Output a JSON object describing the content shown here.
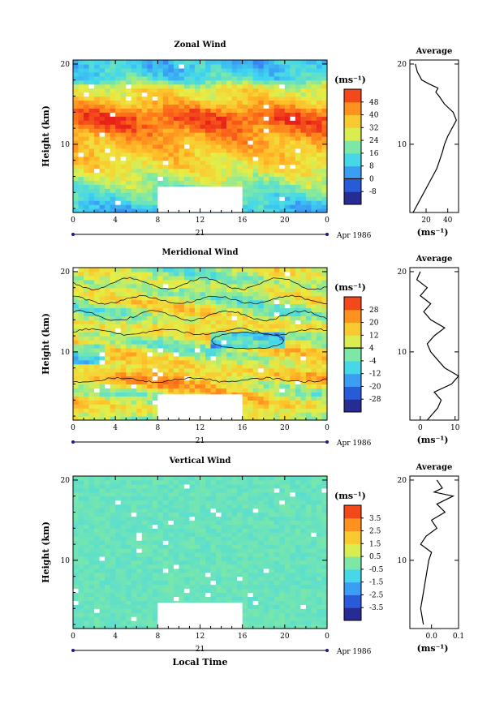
{
  "chart_data": [
    {
      "type": "heatmap",
      "title": "Zonal Wind",
      "ylabel": "Height (km)",
      "xlabel": "",
      "x_ticks": [
        "0",
        "4",
        "8",
        "12",
        "16",
        "20",
        "0"
      ],
      "y_ticks": [
        "10",
        "20"
      ],
      "date_day": "21",
      "date_label": "Apr 1986",
      "ylim": [
        1.5,
        20.5
      ],
      "xlim": [
        0,
        24
      ],
      "data_gap": {
        "x": [
          8,
          16
        ],
        "y": [
          1.5,
          4.7
        ]
      },
      "colorbar": {
        "unit": "(ms⁻¹)",
        "ticks": [
          "48",
          "40",
          "32",
          "24",
          "16",
          "8",
          "0",
          "-8"
        ],
        "range": [
          -12,
          52
        ]
      },
      "profile": {
        "title": "Average",
        "xlabel": "(ms⁻¹)",
        "x_ticks": [
          "20",
          "40"
        ],
        "xlim": [
          5,
          50
        ],
        "y_ticks": [
          "10",
          "20"
        ],
        "heights": [
          1.5,
          3,
          5,
          7,
          9,
          10,
          11,
          12,
          13,
          14,
          15,
          16,
          16.5,
          17,
          17.5,
          18,
          19,
          20
        ],
        "values": [
          8,
          14,
          22,
          30,
          35,
          37,
          40,
          44,
          48,
          45,
          37,
          32,
          29,
          31,
          23,
          16,
          12,
          10
        ]
      }
    },
    {
      "type": "heatmap",
      "title": "Meridional Wind",
      "ylabel": "Height (km)",
      "xlabel": "",
      "x_ticks": [
        "0",
        "4",
        "8",
        "12",
        "16",
        "20",
        "0"
      ],
      "y_ticks": [
        "10",
        "20"
      ],
      "date_day": "21",
      "date_label": "Apr 1986",
      "ylim": [
        1.5,
        20.5
      ],
      "xlim": [
        0,
        24
      ],
      "data_gap": {
        "x": [
          8,
          16
        ],
        "y": [
          1.5,
          4.7
        ]
      },
      "colorbar": {
        "unit": "(ms⁻¹)",
        "ticks": [
          "28",
          "20",
          "12",
          "4",
          "-4",
          "-12",
          "-20",
          "-28"
        ],
        "range": [
          -32,
          32
        ]
      },
      "profile": {
        "title": "Average",
        "xlabel": "(ms⁻¹)",
        "x_ticks": [
          "0",
          "10"
        ],
        "xlim": [
          -3,
          11
        ],
        "y_ticks": [
          "10",
          "20"
        ],
        "heights": [
          1.5,
          3,
          4,
          5,
          6,
          7,
          8,
          9,
          10,
          11,
          12,
          13,
          14,
          15,
          16,
          17,
          18,
          19,
          20
        ],
        "values": [
          2,
          5,
          6,
          4,
          9,
          11,
          7,
          5,
          3,
          2,
          4,
          7,
          3,
          1,
          3,
          0,
          2,
          -1,
          0
        ]
      }
    },
    {
      "type": "heatmap",
      "title": "Vertical Wind",
      "ylabel": "Height (km)",
      "xlabel": "Local Time",
      "x_ticks": [
        "0",
        "4",
        "8",
        "12",
        "16",
        "20",
        "0"
      ],
      "y_ticks": [
        "10",
        "20"
      ],
      "date_day": "21",
      "date_label": "Apr 1986",
      "ylim": [
        1.5,
        20.5
      ],
      "xlim": [
        0,
        24
      ],
      "data_gap": {
        "x": [
          8,
          16
        ],
        "y": [
          1.5,
          4.7
        ]
      },
      "colorbar": {
        "unit": "(ms⁻¹)",
        "ticks": [
          "3.5",
          "2.5",
          "1.5",
          "0.5",
          "-0.5",
          "-1.5",
          "-2.5",
          "-3.5"
        ],
        "range": [
          -4,
          4
        ]
      },
      "profile": {
        "title": "Average",
        "xlabel": "(ms⁻¹)",
        "x_ticks": [
          "0.0",
          "0.1"
        ],
        "xlim": [
          -0.08,
          0.1
        ],
        "y_ticks": [
          "10",
          "20"
        ],
        "heights": [
          2,
          4,
          6,
          8,
          10,
          11,
          12,
          13,
          14,
          15,
          16,
          17,
          18,
          18.5,
          19,
          20
        ],
        "values": [
          -0.03,
          -0.04,
          -0.03,
          -0.02,
          -0.01,
          0.0,
          -0.04,
          -0.02,
          0.02,
          0.0,
          0.05,
          0.02,
          0.08,
          0.01,
          0.04,
          0.02
        ]
      }
    }
  ]
}
